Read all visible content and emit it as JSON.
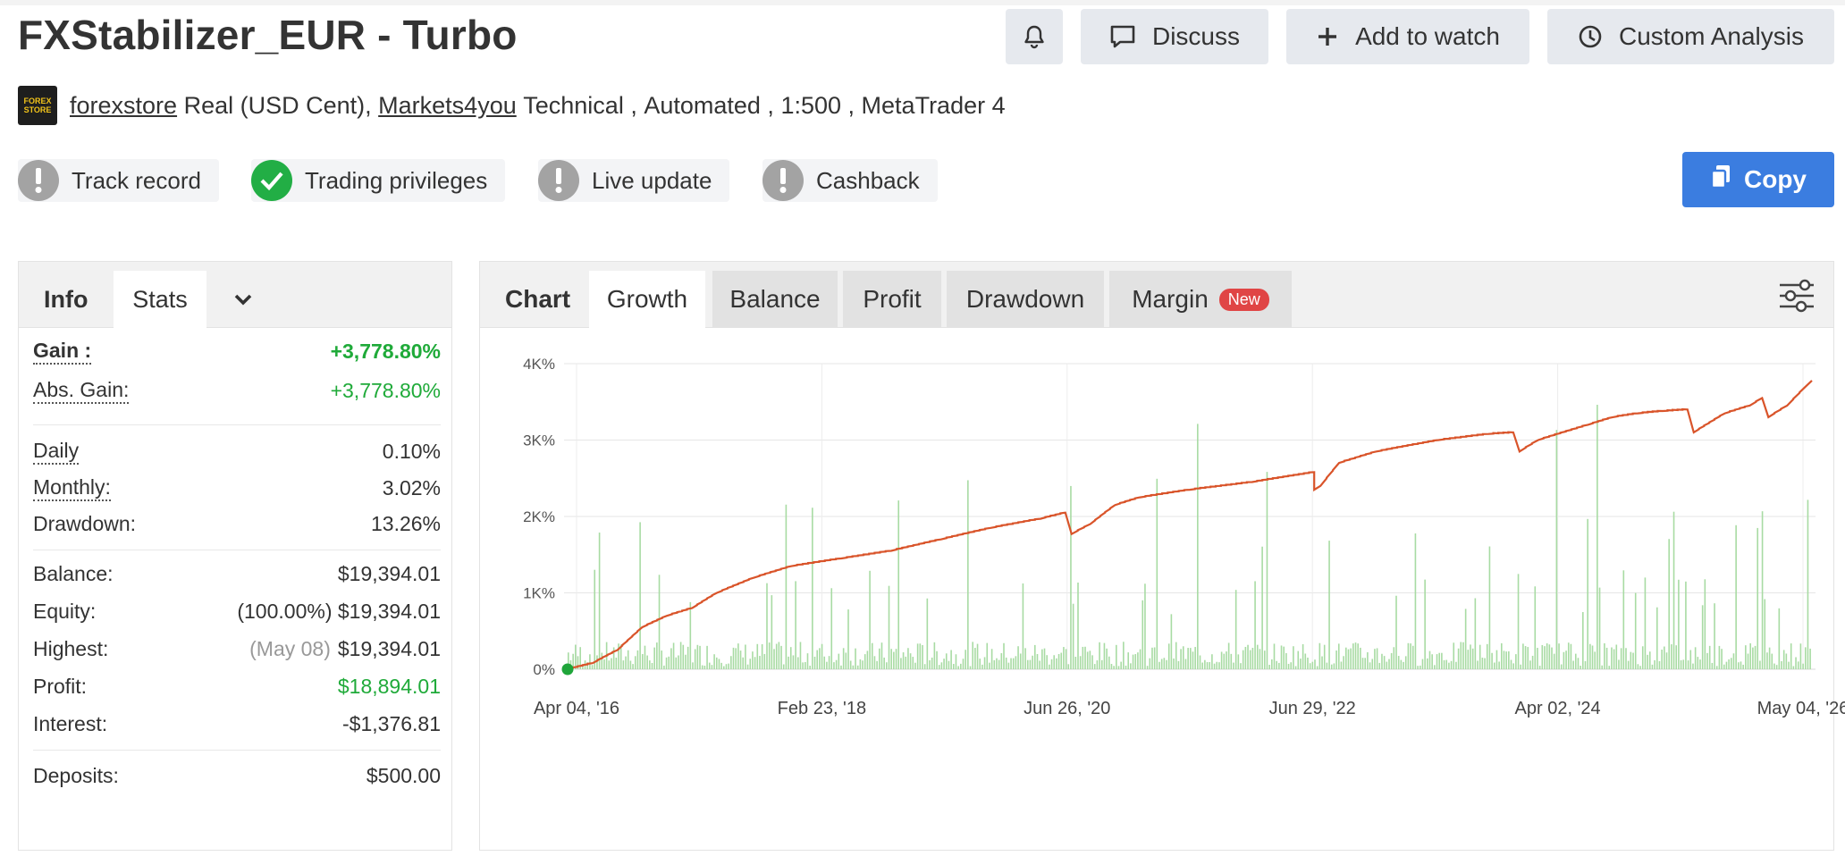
{
  "header": {
    "title": "FXStabilizer_EUR - Turbo",
    "discuss_label": "Discuss",
    "watch_label": "Add to watch",
    "analysis_label": "Custom Analysis",
    "icons": [
      "bell-icon",
      "comment-icon",
      "plus-icon",
      "clock-icon"
    ]
  },
  "meta": {
    "logo_text_1": "FOREX",
    "logo_text_2": "STORE",
    "owner": "forexstore",
    "account_type": "Real (USD Cent),",
    "broker": "Markets4you",
    "style": "Technical ,",
    "mode": "Automated ,",
    "leverage": "1:500 ,",
    "platform": "MetaTrader 4"
  },
  "badges": [
    {
      "label": "Track record",
      "status": "warning"
    },
    {
      "label": "Trading privileges",
      "status": "ok"
    },
    {
      "label": "Live update",
      "status": "warning"
    },
    {
      "label": "Cashback",
      "status": "warning"
    }
  ],
  "copy_label": "Copy",
  "stats_panel": {
    "tab_info": "Info",
    "tab_stats": "Stats",
    "gain_label": "Gain :",
    "gain_value": "+3,778.80%",
    "abs_gain_label": "Abs. Gain:",
    "abs_gain_value": "+3,778.80%",
    "daily_label": "Daily",
    "daily_value": "0.10%",
    "monthly_label": "Monthly:",
    "monthly_value": "3.02%",
    "drawdown_label": "Drawdown:",
    "drawdown_value": "13.26%",
    "balance_label": "Balance:",
    "balance_value": "$19,394.01",
    "equity_label": "Equity:",
    "equity_pct": "(100.00%)",
    "equity_value": "$19,394.01",
    "highest_label": "Highest:",
    "highest_date": "(May 08)",
    "highest_value": "$19,394.01",
    "profit_label": "Profit:",
    "profit_value": "$18,894.01",
    "interest_label": "Interest:",
    "interest_value": "-$1,376.81",
    "deposits_label": "Deposits:",
    "deposits_value": "$500.00"
  },
  "chart_panel": {
    "label": "Chart",
    "tabs": [
      "Growth",
      "Balance",
      "Profit",
      "Drawdown",
      "Margin"
    ],
    "active_tab": "Growth",
    "new_badge": "New"
  },
  "chart_data": {
    "type": "line",
    "y_ticks": [
      "0%",
      "1K%",
      "2K%",
      "3K%",
      "4K%"
    ],
    "ylim": [
      0,
      4000
    ],
    "x_ticks": [
      "Apr 04, '16",
      "Feb 23, '18",
      "Jun 26, '20",
      "Jun 29, '22",
      "Apr 02, '24",
      "May 04, '26"
    ],
    "colors": {
      "growth_line": "#d9542a",
      "volume_bars": "#a8dba3",
      "start_marker": "#1fa53a"
    },
    "growth": {
      "x": [
        0,
        0.02,
        0.04,
        0.06,
        0.08,
        0.1,
        0.12,
        0.15,
        0.18,
        0.22,
        0.26,
        0.3,
        0.34,
        0.38,
        0.4,
        0.405,
        0.42,
        0.44,
        0.46,
        0.5,
        0.55,
        0.6,
        0.6,
        0.605,
        0.62,
        0.65,
        0.7,
        0.74,
        0.76,
        0.765,
        0.78,
        0.82,
        0.84,
        0.86,
        0.88,
        0.9,
        0.905,
        0.93,
        0.95,
        0.96,
        0.965,
        0.98,
        0.995,
        1.0
      ],
      "y": [
        0,
        80,
        250,
        550,
        700,
        800,
        1000,
        1200,
        1350,
        1450,
        1550,
        1700,
        1850,
        1970,
        2050,
        1770,
        1900,
        2150,
        2250,
        2350,
        2450,
        2580,
        2350,
        2400,
        2700,
        2850,
        3000,
        3080,
        3100,
        2850,
        3000,
        3200,
        3300,
        3350,
        3380,
        3400,
        3100,
        3350,
        3450,
        3550,
        3300,
        3450,
        3700,
        3778.8
      ]
    },
    "volume_bar_count": 520,
    "legend": "none"
  }
}
